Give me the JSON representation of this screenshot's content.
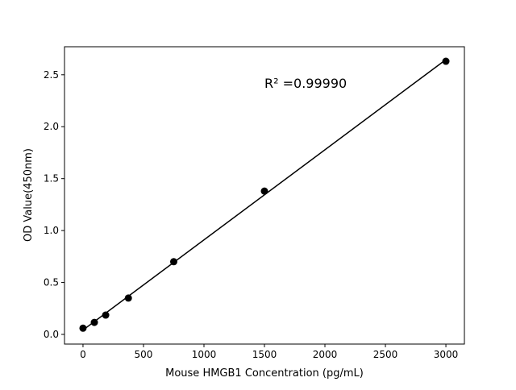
{
  "chart_data": {
    "type": "scatter",
    "xlabel": "Mouse HMGB1 Concentration (pg/mL)",
    "ylabel": "OD Value(450nm)",
    "annotation": "R² =0.99990",
    "x": [
      0,
      93.75,
      187.5,
      375,
      750,
      1500,
      3000
    ],
    "y": [
      0.06,
      0.116,
      0.186,
      0.35,
      0.7,
      1.38,
      2.63
    ],
    "fit": "linear",
    "xlim": [
      -153,
      3153
    ],
    "ylim": [
      -0.093,
      2.77
    ],
    "xticks": [
      0,
      500,
      1000,
      1500,
      2000,
      2500,
      3000
    ],
    "yticks": [
      0.0,
      0.5,
      1.0,
      1.5,
      2.0,
      2.5
    ],
    "xtick_labels": [
      "0",
      "500",
      "1000",
      "1500",
      "2000",
      "2500",
      "3000"
    ],
    "ytick_labels": [
      "0.0",
      "0.5",
      "1.0",
      "1.5",
      "2.0",
      "2.5"
    ],
    "grid": false,
    "color": "#000000"
  }
}
